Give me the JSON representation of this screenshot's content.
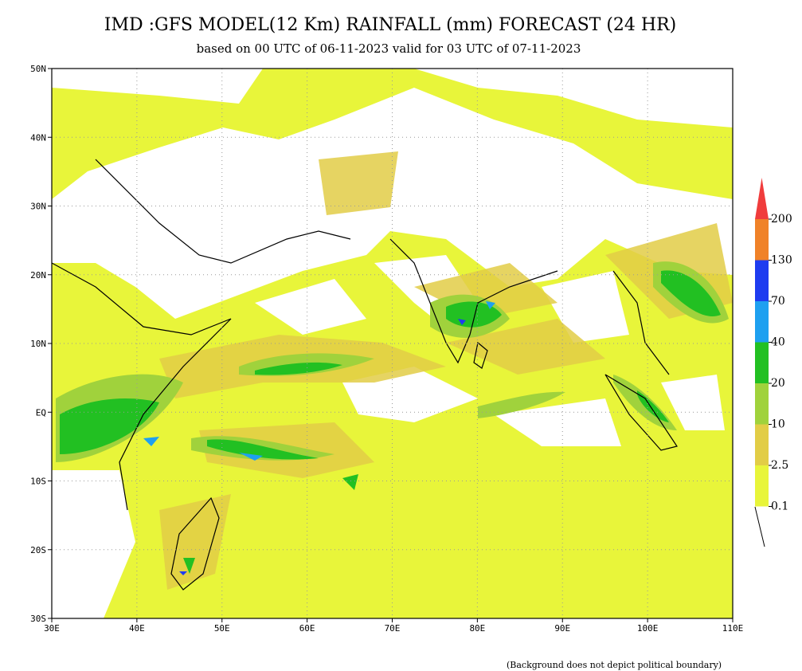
{
  "header": {
    "title": "IMD :GFS MODEL(12 Km) RAINFALL (mm) FORECAST (24 HR)",
    "subtitle": "based on 00 UTC of 06-11-2023 valid for 03 UTC of 07-11-2023"
  },
  "map": {
    "lon_labels": [
      "30E",
      "40E",
      "50E",
      "60E",
      "70E",
      "80E",
      "90E",
      "100E",
      "110E"
    ],
    "lat_labels": [
      "50N",
      "40N",
      "30N",
      "20N",
      "10N",
      "EQ",
      "10S",
      "20S",
      "30S"
    ]
  },
  "legend": {
    "items": [
      {
        "label": "200",
        "color": "#f03c3c"
      },
      {
        "label": "130",
        "color": "#f08228"
      },
      {
        "label": "70",
        "color": "#1e3cf0"
      },
      {
        "label": "40",
        "color": "#1ea0f0"
      },
      {
        "label": "20",
        "color": "#22c022"
      },
      {
        "label": "10",
        "color": "#a0d23c"
      },
      {
        "label": "2.5",
        "color": "#e2cd46"
      },
      {
        "label": "0.1",
        "color": "#e8f53a"
      }
    ]
  },
  "footnote": "(Background does not depict political boundary)"
}
